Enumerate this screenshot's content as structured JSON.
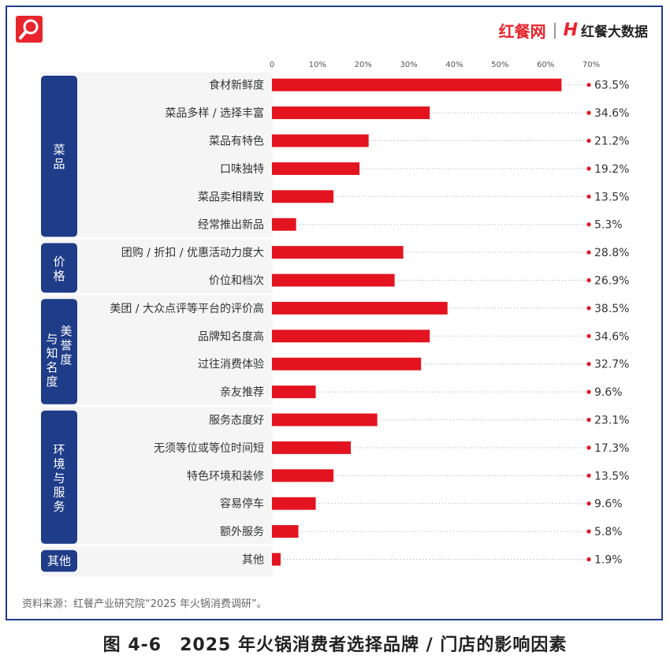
{
  "header": {
    "brand_left": "红餐网",
    "brand_right_mark": "H",
    "brand_right": "红餐大数据"
  },
  "chart_data": {
    "type": "bar",
    "orientation": "horizontal",
    "x_ticks": [
      "0",
      "10%",
      "20%",
      "30%",
      "40%",
      "50%",
      "60%",
      "70%"
    ],
    "xlim": [
      0,
      70
    ],
    "groups": [
      {
        "name": "菜品",
        "categories": [
          "食材新鲜度",
          "菜品多样 / 选择丰富",
          "菜品有特色",
          "口味独特",
          "菜品卖相精致",
          "经常推出新品"
        ],
        "values": [
          63.5,
          34.6,
          21.2,
          19.2,
          13.5,
          5.3
        ],
        "labels": [
          "63.5%",
          "34.6%",
          "21.2%",
          "19.2%",
          "13.5%",
          "5.3%"
        ]
      },
      {
        "name": "价格",
        "categories": [
          "团购 / 折扣 / 优惠活动力度大",
          "价位和档次"
        ],
        "values": [
          28.8,
          26.9
        ],
        "labels": [
          "28.8%",
          "26.9%"
        ]
      },
      {
        "name": "美誉度与知名度",
        "categories": [
          "美团 / 大众点评等平台的评价高",
          "品牌知名度高",
          "过往消费体验",
          "亲友推荐"
        ],
        "values": [
          38.5,
          34.6,
          32.7,
          9.6
        ],
        "labels": [
          "38.5%",
          "34.6%",
          "32.7%",
          "9.6%"
        ]
      },
      {
        "name": "环境与服务",
        "categories": [
          "服务态度好",
          "无须等位或等位时间短",
          "特色环境和装修",
          "容易停车",
          "额外服务"
        ],
        "values": [
          23.1,
          17.3,
          13.5,
          9.6,
          5.8
        ],
        "labels": [
          "23.1%",
          "17.3%",
          "13.5%",
          "9.6%",
          "5.8%"
        ]
      },
      {
        "name": "其他",
        "categories": [
          "其他"
        ],
        "values": [
          1.9
        ],
        "labels": [
          "1.9%"
        ]
      }
    ],
    "bar_color": "#e3141f",
    "group_color": "#1f3c88",
    "grid": false
  },
  "source": "资料来源：红餐产业研究院“2025 年火锅消费调研”。",
  "caption": "图 4-6　2025 年火锅消费者选择品牌 / 门店的影响因素"
}
